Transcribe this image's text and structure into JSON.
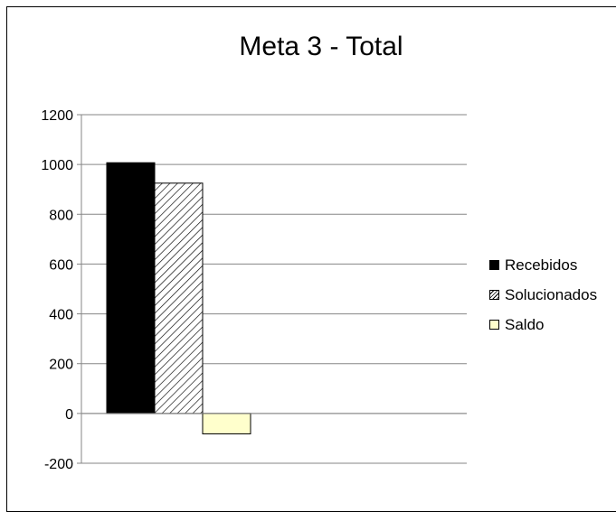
{
  "chart_data": {
    "type": "bar",
    "title": "Meta 3 - Total",
    "categories": [
      ""
    ],
    "series": [
      {
        "name": "Recebidos",
        "values": [
          1007
        ],
        "color": "#000000",
        "pattern": "solid"
      },
      {
        "name": "Solucionados",
        "values": [
          925
        ],
        "color": "#ffffff",
        "pattern": "diagonal-hatch"
      },
      {
        "name": "Saldo",
        "values": [
          -82
        ],
        "color": "#ffffcc",
        "pattern": "solid"
      }
    ],
    "ylim": [
      -200,
      1200
    ],
    "yticks": [
      "-200",
      "0",
      "200",
      "400",
      "600",
      "800",
      "1000",
      "1200"
    ],
    "grid": true,
    "legend_position": "right"
  }
}
